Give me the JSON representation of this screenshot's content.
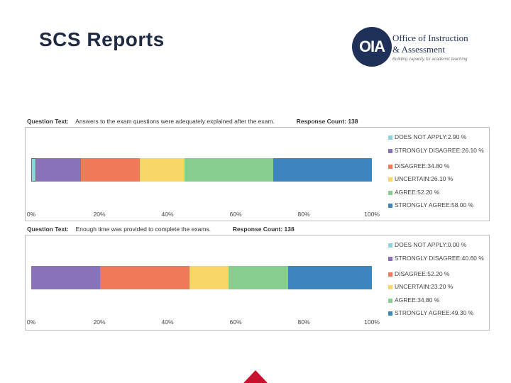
{
  "slide": {
    "title": "SCS Reports"
  },
  "logo": {
    "abbr": "OIA",
    "line1": "Office of Instruction",
    "line2": "& Assessment",
    "tagline": "Building capacity for academic teaching"
  },
  "chart_data": [
    {
      "type": "bar",
      "orientation": "horizontal-stacked-100",
      "question_label": "Question Text:",
      "question_text": "Answers to the exam questions were adequately explained after the exam.",
      "response_label": "Response Count:",
      "response_count": "138",
      "series": [
        {
          "name": "DOES NOT APPLY",
          "value": 2.9,
          "legend": "DOES NOT APPLY:2.90 %",
          "color": "#8fd3dd"
        },
        {
          "name": "STRONGLY DISAGREE",
          "value": 26.1,
          "legend": "STRONGLY DISAGREE:26.10 %",
          "color": "#8a72b8"
        },
        {
          "name": "DISAGREE",
          "value": 34.8,
          "legend": "DISAGREE:34.80 %",
          "color": "#ee7a5a"
        },
        {
          "name": "UNCERTAIN",
          "value": 26.1,
          "legend": "UNCERTAIN:26.10 %",
          "color": "#f7d867"
        },
        {
          "name": "AGREE",
          "value": 52.2,
          "legend": "AGREE:52.20 %",
          "color": "#86cd8f"
        },
        {
          "name": "STRONGLY AGREE",
          "value": 58.0,
          "legend": "STRONGLY AGREE:58.00 %",
          "color": "#3c86bd"
        }
      ],
      "x_ticks": [
        "0%",
        "20%",
        "40%",
        "60%",
        "80%",
        "100%"
      ],
      "xlim": [
        0,
        100
      ]
    },
    {
      "type": "bar",
      "orientation": "horizontal-stacked-100",
      "question_label": "Question Text:",
      "question_text": "Enough time was provided to complete the exams.",
      "response_label": "Response Count:",
      "response_count": "138",
      "series": [
        {
          "name": "DOES NOT APPLY",
          "value": 0.0,
          "legend": "DOES NOT APPLY:0.00 %",
          "color": "#8fd3dd"
        },
        {
          "name": "STRONGLY DISAGREE",
          "value": 40.6,
          "legend": "STRONGLY DISAGREE:40.60 %",
          "color": "#8a72b8"
        },
        {
          "name": "DISAGREE",
          "value": 52.2,
          "legend": "DISAGREE:52.20 %",
          "color": "#ee7a5a"
        },
        {
          "name": "UNCERTAIN",
          "value": 23.2,
          "legend": "UNCERTAIN:23.20 %",
          "color": "#f7d867"
        },
        {
          "name": "AGREE",
          "value": 34.8,
          "legend": "AGREE:34.80 %",
          "color": "#86cd8f"
        },
        {
          "name": "STRONGLY AGREE",
          "value": 49.3,
          "legend": "STRONGLY AGREE:49.30 %",
          "color": "#3c86bd"
        }
      ],
      "x_ticks": [
        "0%",
        "20%",
        "40%",
        "60%",
        "80%",
        "100%"
      ],
      "xlim": [
        0,
        100
      ]
    }
  ]
}
